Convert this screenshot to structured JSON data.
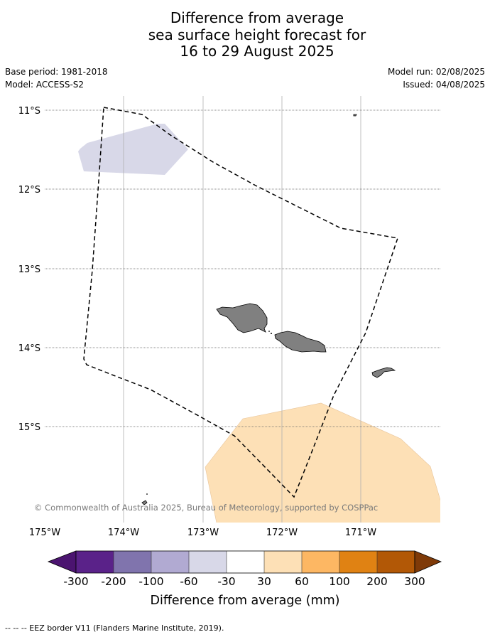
{
  "title": {
    "line1": "Difference from average",
    "line2": "sea surface height forecast for",
    "line3": "16 to 29 August 2025"
  },
  "meta": {
    "base_period": "Base period: 1981-2018",
    "model": "Model: ACCESS-S2",
    "model_run": "Model run: 02/08/2025",
    "issued": "Issued: 04/08/2025"
  },
  "map": {
    "lat_labels": [
      "11°S",
      "12°S",
      "13°S",
      "14°S",
      "15°S"
    ],
    "lon_labels": [
      "175°W",
      "174°W",
      "173°W",
      "172°W",
      "171°W"
    ],
    "copyright": "© Commonwealth of Australia 2025, Bureau of Meteorology, supported by COSPPac",
    "anomaly_colors": {
      "negative_patch": "#d8d8e8",
      "positive_patch": "#fde0b6",
      "land": "#808080"
    }
  },
  "colorbar": {
    "tick_labels": [
      "-300",
      "-200",
      "-100",
      "-60",
      "-30",
      "30",
      "60",
      "100",
      "200",
      "300"
    ],
    "colors": [
      "#4b1470",
      "#5a2289",
      "#8074ad",
      "#b1aad2",
      "#d8d8e8",
      "#ffffff",
      "#fde0b6",
      "#fdb763",
      "#e08213",
      "#b25806",
      "#7f3a08"
    ],
    "label": "Difference from average (mm)"
  },
  "footer": {
    "legend_text": "--  --  -- EEZ border V11 (Flanders Marine Institute, 2019)."
  }
}
